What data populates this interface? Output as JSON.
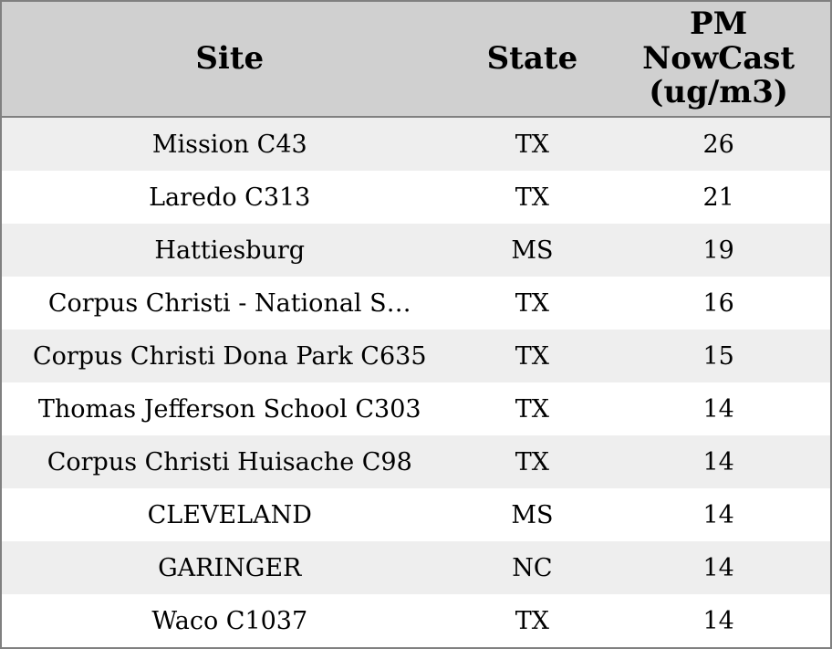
{
  "chart_data": {
    "type": "table",
    "title": "",
    "columns": [
      "Site",
      "State",
      "PM NowCast (ug/m3)"
    ],
    "rows": [
      [
        "Mission C43",
        "TX",
        26
      ],
      [
        "Laredo C313",
        "TX",
        21
      ],
      [
        "Hattiesburg",
        "MS",
        19
      ],
      [
        "Corpus Christi - National S…",
        "TX",
        16
      ],
      [
        "Corpus Christi Dona Park C635",
        "TX",
        15
      ],
      [
        "Thomas Jefferson School C303",
        "TX",
        14
      ],
      [
        "Corpus Christi Huisache C98",
        "TX",
        14
      ],
      [
        "CLEVELAND",
        "MS",
        14
      ],
      [
        "GARINGER",
        "NC",
        14
      ],
      [
        "Waco C1037",
        "TX",
        14
      ]
    ],
    "layout_hints": {
      "header_alignment": "center",
      "cell_alignment": "center",
      "alternating_rows": true
    }
  },
  "colors": {
    "header_bg": "#d0d0d0",
    "row_alt_bg": "#eeeeee",
    "row_bg": "#ffffff",
    "border": "#808080",
    "text": "#000000"
  }
}
